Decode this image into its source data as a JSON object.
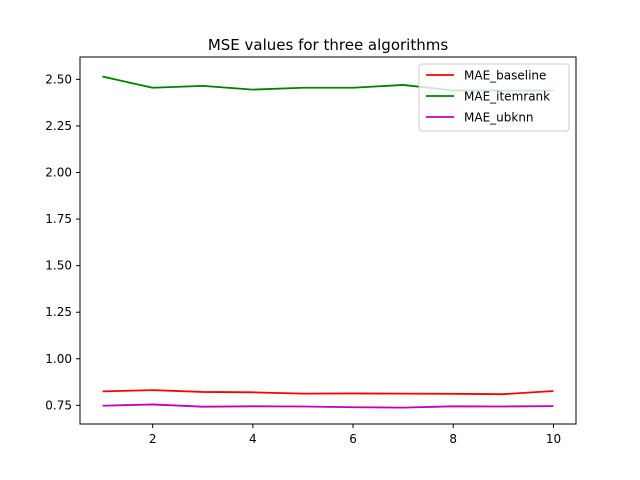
{
  "chart_data": {
    "type": "line",
    "title": "MSE values for three algorithms",
    "xlabel": "",
    "ylabel": "",
    "x": [
      1,
      2,
      3,
      4,
      5,
      6,
      7,
      8,
      9,
      10
    ],
    "xlim": [
      0.55,
      10.45
    ],
    "ylim": [
      0.65,
      2.62
    ],
    "xticks": [
      2,
      4,
      6,
      8,
      10
    ],
    "xtick_labels": [
      "2",
      "4",
      "6",
      "8",
      "10"
    ],
    "yticks": [
      0.75,
      1.0,
      1.25,
      1.5,
      1.75,
      2.0,
      2.25,
      2.5
    ],
    "ytick_labels": [
      "0.75",
      "1.00",
      "1.25",
      "1.50",
      "1.75",
      "2.00",
      "2.25",
      "2.50"
    ],
    "grid": false,
    "legend_position": "top-right",
    "series": [
      {
        "name": "MAE_baseline",
        "color": "#ff0000",
        "values": [
          0.825,
          0.832,
          0.822,
          0.82,
          0.813,
          0.814,
          0.813,
          0.812,
          0.81,
          0.827
        ]
      },
      {
        "name": "MAE_itemrank",
        "color": "#008000",
        "values": [
          2.515,
          2.455,
          2.465,
          2.445,
          2.455,
          2.455,
          2.47,
          2.44,
          2.44,
          2.44
        ]
      },
      {
        "name": "MAE_ubknn",
        "color": "#bf00bf",
        "values": [
          0.748,
          0.755,
          0.743,
          0.745,
          0.744,
          0.74,
          0.738,
          0.745,
          0.744,
          0.746
        ]
      }
    ]
  }
}
